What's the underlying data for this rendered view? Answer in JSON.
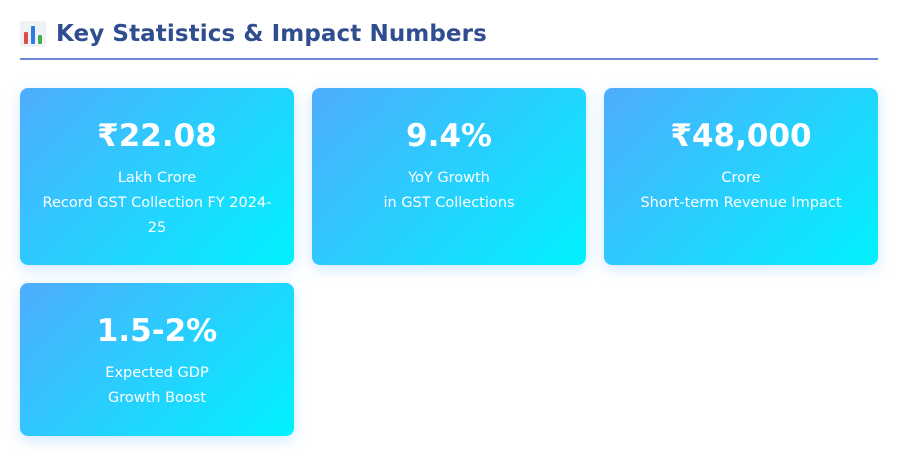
{
  "header": {
    "icon": "bar-chart-icon",
    "title": "Key Statistics & Impact Numbers",
    "divider_color": "#6f86d6",
    "title_color": "#2f4d8f"
  },
  "cards_gradient": [
    "#4facfe",
    "#00f2fe"
  ],
  "stats": [
    {
      "value": "₹22.08",
      "line1": "Lakh Crore",
      "line2": "Record GST Collection FY 2024-",
      "line3": "25"
    },
    {
      "value": "9.4%",
      "line1": "YoY Growth",
      "line2": "in GST Collections"
    },
    {
      "value": "₹48,000",
      "line1": "Crore",
      "line2": "Short-term Revenue Impact"
    },
    {
      "value": "1.5-2%",
      "line1": "Expected GDP",
      "line2": "Growth Boost"
    }
  ]
}
